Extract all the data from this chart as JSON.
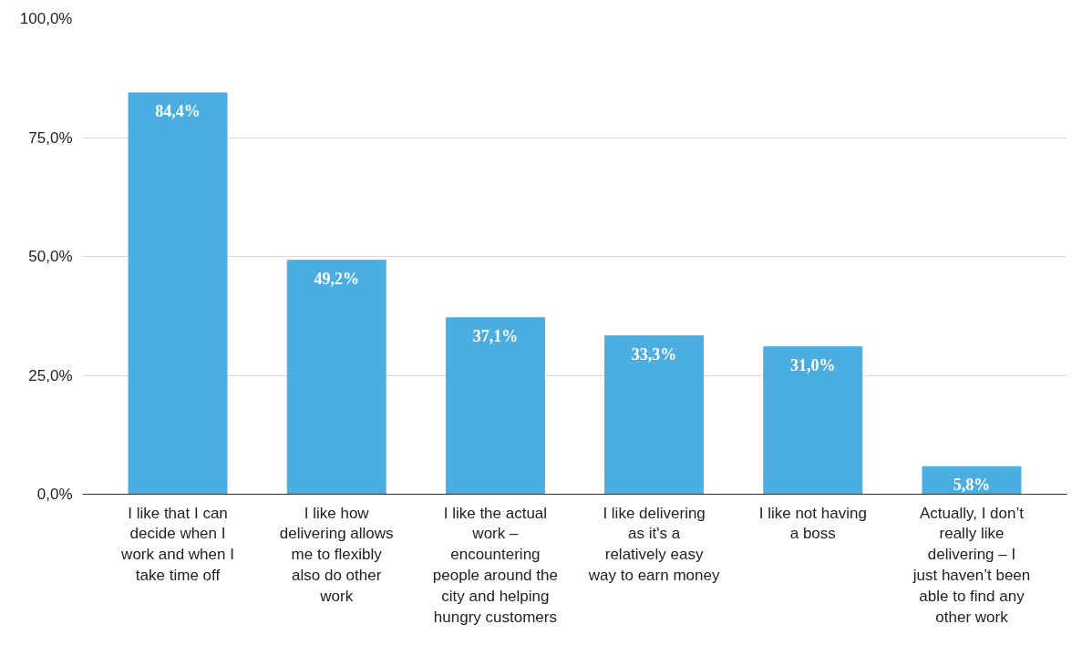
{
  "chart_data": {
    "type": "bar",
    "categories": [
      "I like that I can decide when I work and when I take time off",
      "I like how delivering allows me to flexibly also do other work",
      "I like the actual work – encountering people around the city and helping hungry customers",
      "I like delivering as it's a relatively easy way to earn money",
      "I like not having a boss",
      "Actually, I don’t really like delivering – I just haven’t been able to find any other work"
    ],
    "values": [
      84.4,
      49.2,
      37.1,
      33.3,
      31.0,
      5.8
    ],
    "value_labels": [
      "84,4%",
      "49,2%",
      "37,1%",
      "33,3%",
      "31,0%",
      "5,8%"
    ],
    "color": "#4aaee0",
    "ylim": [
      0,
      100
    ],
    "yticks": [
      {
        "value": 0,
        "label": "0,0%"
      },
      {
        "value": 25,
        "label": "25,0%"
      },
      {
        "value": 50,
        "label": "50,0%"
      },
      {
        "value": 75,
        "label": "75,0%"
      },
      {
        "value": 100,
        "label": "100,0%"
      }
    ],
    "grid": "y"
  }
}
